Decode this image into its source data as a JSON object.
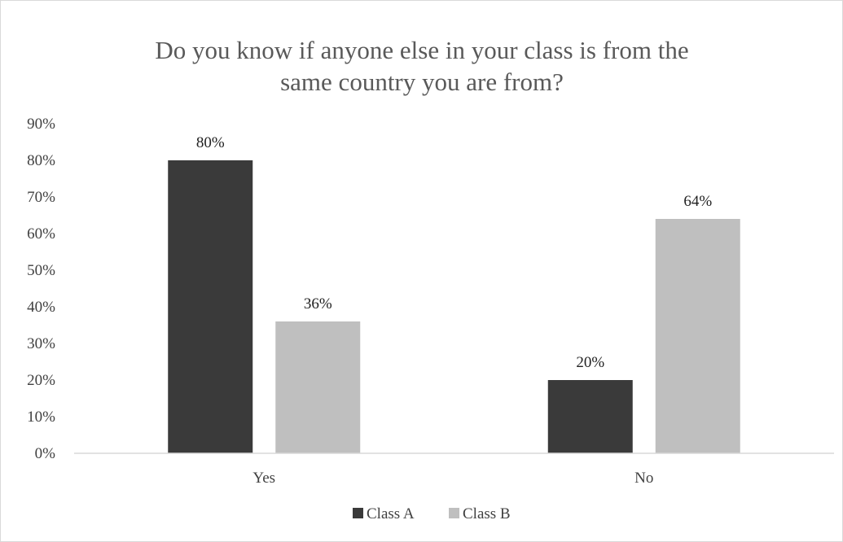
{
  "chart_data": {
    "type": "bar",
    "title_lines": [
      "Do you know if anyone else in your class is from the",
      "same country you are from?"
    ],
    "categories": [
      "Yes",
      "No"
    ],
    "series": [
      {
        "name": "Class A",
        "values": [
          0.8,
          0.2
        ],
        "labels": [
          "80%",
          "20%"
        ],
        "color": "#3a3a3a"
      },
      {
        "name": "Class B",
        "values": [
          0.36,
          0.64
        ],
        "labels": [
          "36%",
          "64%"
        ],
        "color": "#bfbfbf"
      }
    ],
    "ylim": [
      0,
      0.9
    ],
    "y_ticks": [
      0,
      0.1,
      0.2,
      0.3,
      0.4,
      0.5,
      0.6,
      0.7,
      0.8,
      0.9
    ],
    "y_tick_labels": [
      "0%",
      "10%",
      "20%",
      "30%",
      "40%",
      "50%",
      "60%",
      "70%",
      "80%",
      "90%"
    ],
    "grid": false,
    "legend_position": "bottom"
  }
}
